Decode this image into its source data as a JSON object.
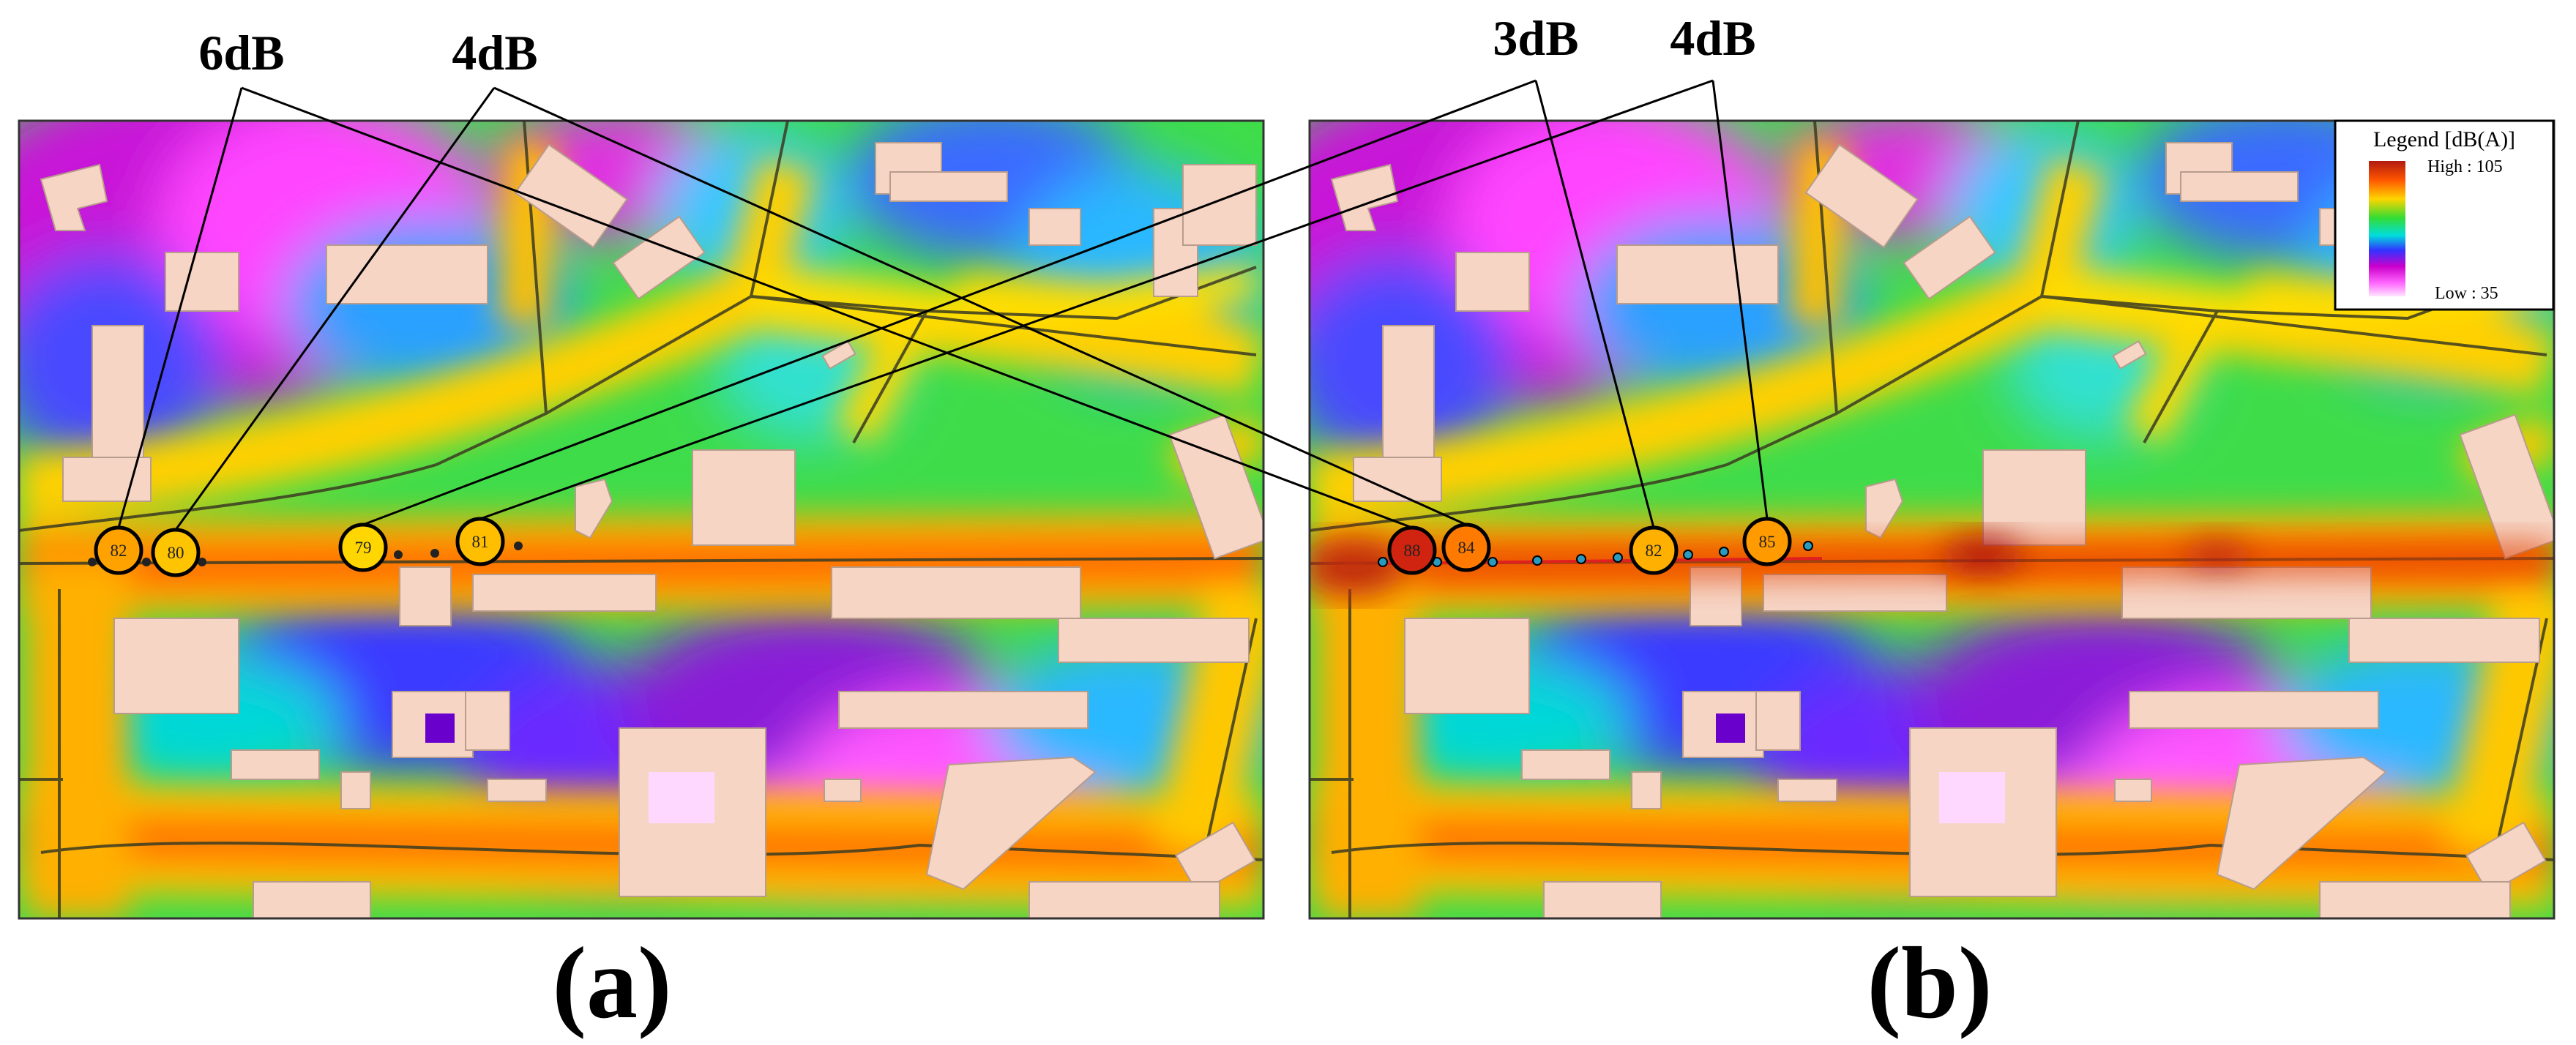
{
  "panels": [
    {
      "id": "a",
      "label": "(a)",
      "circled_values": [
        "82",
        "80",
        "79",
        "81"
      ]
    },
    {
      "id": "b",
      "label": "(b)",
      "circled_values": [
        "88",
        "84",
        "82",
        "85"
      ]
    }
  ],
  "differences": [
    {
      "text": "6dB"
    },
    {
      "text": "4dB"
    },
    {
      "text": "3dB"
    },
    {
      "text": "4dB"
    }
  ],
  "legend": {
    "title": "Legend [dB(A)]",
    "high_label": "High : 105",
    "low_label": "Low : 35",
    "high_value": 105,
    "low_value": 35,
    "gradient_colors": [
      "#b21a10",
      "#ff5500",
      "#ffd400",
      "#33dd33",
      "#00dddd",
      "#3333ff",
      "#cc00cc",
      "#ff66ff",
      "#ffe5ff"
    ]
  },
  "colors": {
    "building": "#f6d5c5",
    "road": "#444433",
    "circle": "#000000"
  }
}
